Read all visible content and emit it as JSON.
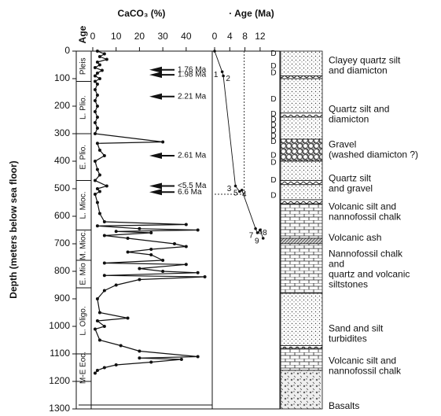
{
  "chart_data": {
    "type": "depth_profile",
    "title": "CaCO₃ (%)",
    "title2": "· Age (Ma)",
    "age_header": "Age",
    "ylabel": "Depth (meters below sea floor)",
    "ylim": [
      0,
      1300
    ],
    "yticks": [
      0,
      100,
      200,
      300,
      400,
      500,
      600,
      700,
      800,
      900,
      1000,
      1100,
      1200,
      1300
    ],
    "xlim": [
      0,
      51
    ],
    "xticks": [
      0,
      10,
      20,
      30,
      40
    ],
    "x2lim": [
      0,
      17
    ],
    "x2ticks": [
      0,
      4,
      8,
      12
    ],
    "series": [
      {
        "name": "CaCO₃",
        "color": "#111111",
        "depth": [
          0,
          10,
          20,
          30,
          40,
          50,
          60,
          70,
          80,
          90,
          100,
          110,
          120,
          140,
          160,
          180,
          200,
          220,
          240,
          260,
          280,
          300,
          330,
          335,
          360,
          380,
          400,
          430,
          450,
          470,
          490,
          500,
          510,
          520,
          550,
          590,
          620,
          630,
          635,
          645,
          650,
          655,
          660,
          670,
          680,
          700,
          710,
          720,
          730,
          740,
          760,
          770,
          775,
          790,
          800,
          805,
          815,
          820,
          830,
          850,
          870,
          900,
          950,
          970,
          980,
          1000,
          1010,
          1050,
          1070,
          1090,
          1110,
          1115,
          1120,
          1130,
          1140,
          1150,
          1160,
          1170
        ],
        "values": [
          2,
          5,
          3,
          6,
          2,
          3,
          1,
          4,
          2,
          1,
          3,
          1,
          2,
          1,
          2,
          1,
          2,
          1,
          2,
          1,
          2,
          1,
          30,
          2,
          3,
          5,
          1,
          2,
          3,
          1,
          6,
          2,
          3,
          1,
          2,
          3,
          5,
          40,
          2,
          20,
          45,
          10,
          25,
          5,
          15,
          35,
          40,
          25,
          15,
          25,
          30,
          5,
          40,
          20,
          30,
          45,
          5,
          48,
          20,
          10,
          5,
          2,
          3,
          15,
          2,
          5,
          1,
          3,
          12,
          20,
          45,
          20,
          38,
          25,
          10,
          5,
          2,
          1
        ]
      }
    ],
    "age_model": {
      "color": "#111111",
      "depth": [
        0,
        75,
        90,
        490,
        510,
        505,
        645,
        660,
        650,
        680
      ],
      "age": [
        0,
        2.0,
        2.3,
        5.5,
        6.6,
        7.2,
        10.8,
        11.3,
        12.0,
        12.8
      ],
      "labels": [
        null,
        "1",
        "2",
        "3",
        "4",
        "5",
        "6",
        "7",
        "8",
        "9"
      ]
    },
    "reference_lines": {
      "age": 7.8,
      "depth": 520
    },
    "age_picks": [
      {
        "label": "1.76 Ma",
        "depth": 68
      },
      {
        "label": "1.98 Ma",
        "depth": 86
      },
      {
        "label": "2.21 Ma",
        "depth": 165
      },
      {
        "label": "2.61 Ma",
        "depth": 380
      },
      {
        "label": "<5.5 Ma",
        "depth": 490
      },
      {
        "label": "6.6 Ma",
        "depth": 512
      }
    ],
    "age_units": [
      {
        "label": "Pleis",
        "top": 0,
        "bottom": 110
      },
      {
        "label": "L. Plio.",
        "top": 110,
        "bottom": 300
      },
      {
        "label": "E. Plio.",
        "top": 300,
        "bottom": 470
      },
      {
        "label": "L. Mioc.",
        "top": 470,
        "bottom": 650
      },
      {
        "label": "M. Mioc.",
        "top": 650,
        "bottom": 760
      },
      {
        "label": "E. Mio",
        "top": 760,
        "bottom": 860
      },
      {
        "label": "L. Oligo.",
        "top": 860,
        "bottom": 1100
      },
      {
        "label": "M-E Eoc.",
        "top": 1100,
        "bottom": 1200
      }
    ],
    "d_markers": {
      "label": "D",
      "depths": [
        10,
        55,
        80,
        175,
        230,
        250,
        270,
        290,
        310,
        330,
        380,
        405,
        470,
        525
      ]
    },
    "lithology": [
      {
        "top": 0,
        "bottom": 90,
        "pattern": "dots"
      },
      {
        "top": 90,
        "bottom": 100,
        "pattern": "wavy"
      },
      {
        "top": 100,
        "bottom": 225,
        "pattern": "dots"
      },
      {
        "top": 225,
        "bottom": 240,
        "pattern": "wavy"
      },
      {
        "top": 240,
        "bottom": 320,
        "pattern": "dots"
      },
      {
        "top": 320,
        "bottom": 400,
        "pattern": "gravel"
      },
      {
        "top": 400,
        "bottom": 470,
        "pattern": "dots"
      },
      {
        "top": 470,
        "bottom": 485,
        "pattern": "wavy"
      },
      {
        "top": 485,
        "bottom": 540,
        "pattern": "dots"
      },
      {
        "top": 540,
        "bottom": 555,
        "pattern": "wavy"
      },
      {
        "top": 555,
        "bottom": 680,
        "pattern": "brick"
      },
      {
        "top": 680,
        "bottom": 700,
        "pattern": "ash"
      },
      {
        "top": 700,
        "bottom": 880,
        "pattern": "brick"
      },
      {
        "top": 880,
        "bottom": 1070,
        "pattern": "dots"
      },
      {
        "top": 1070,
        "bottom": 1080,
        "pattern": "wavy"
      },
      {
        "top": 1080,
        "bottom": 1160,
        "pattern": "brick"
      },
      {
        "top": 1160,
        "bottom": 1300,
        "pattern": "basalt"
      }
    ],
    "lithology_labels": [
      [
        "Clayey quartz silt",
        "and diamicton"
      ],
      [
        "Quartz silt and",
        "diamicton"
      ],
      [
        "Gravel",
        "(washed diamicton ?)"
      ],
      [
        "Quartz silt",
        "and gravel"
      ],
      [
        "Volcanic silt and",
        "nannofossil chalk"
      ],
      [
        "Volcanic ash"
      ],
      [
        "Nannofossil chalk",
        "and",
        "quartz and volcanic",
        "siltstones"
      ],
      [
        "Sand and silt",
        "turbidites"
      ],
      [
        "Volcanic silt and",
        "nannofossil chalk"
      ],
      [
        "Basalts"
      ]
    ]
  }
}
